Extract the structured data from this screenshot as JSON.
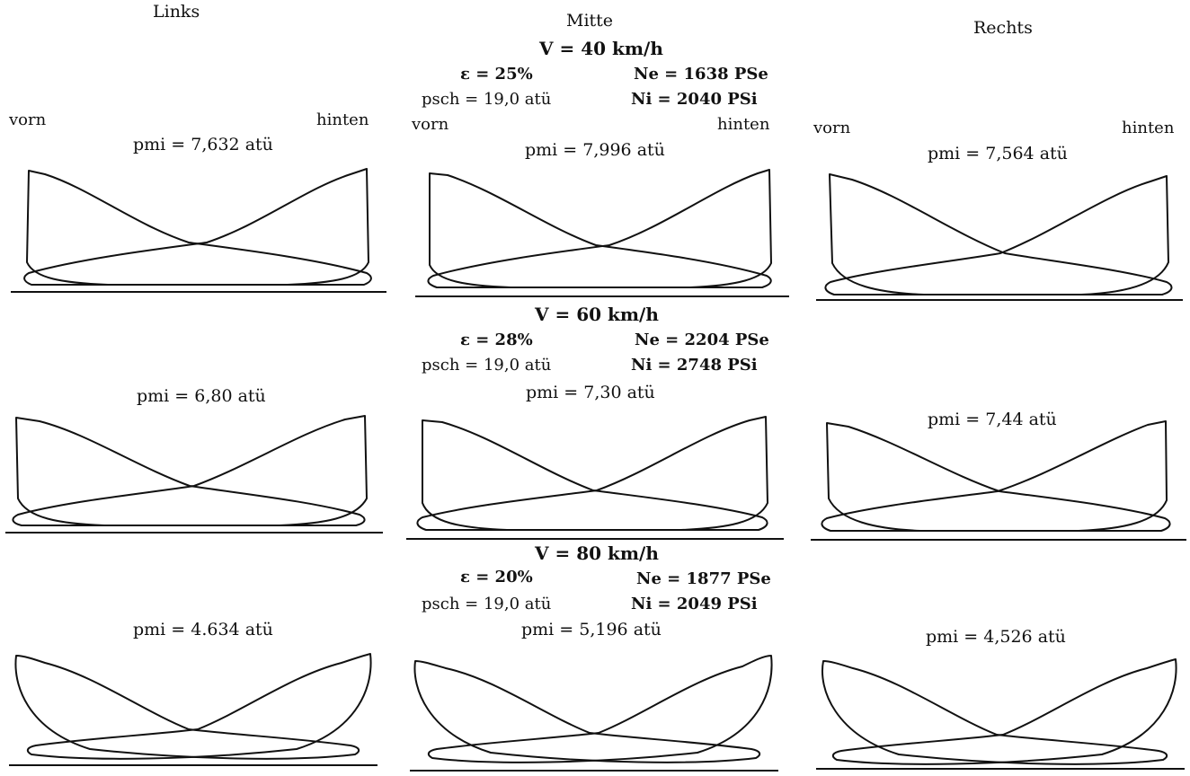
{
  "columns": {
    "left": "Links",
    "middle": "Mitte",
    "right": "Rechts"
  },
  "side_labels": {
    "front": "vorn",
    "back": "hinten"
  },
  "rows": [
    {
      "speed": "V = 40 km/h",
      "epsilon": "ε = 25%",
      "ne": "Ne = 1638 PSe",
      "psch": "psch = 19,0 atü",
      "ni": "Ni = 2040 PSi",
      "pmi": {
        "left": "pmi = 7,632 atü",
        "middle": "pmi = 7,996 atü",
        "right": "pmi = 7,564 atü"
      }
    },
    {
      "speed": "V = 60 km/h",
      "epsilon": "ε = 28%",
      "ne": "Ne = 2204 PSe",
      "psch": "psch = 19,0 atü",
      "ni": "Ni = 2748 PSi",
      "pmi": {
        "left": "pmi = 6,80 atü",
        "middle": "pmi = 7,30 atü",
        "right": "pmi = 7,44 atü"
      }
    },
    {
      "speed": "V = 80 km/h",
      "epsilon": "ε = 20%",
      "ne": "Ne = 1877 PSe",
      "psch": "psch = 19,0 atü",
      "ni": "Ni = 2049 PSi",
      "pmi": {
        "left": "pmi = 4.634 atü",
        "middle": "pmi = 5,196 atü",
        "right": "pmi = 4,526 atü"
      }
    }
  ]
}
